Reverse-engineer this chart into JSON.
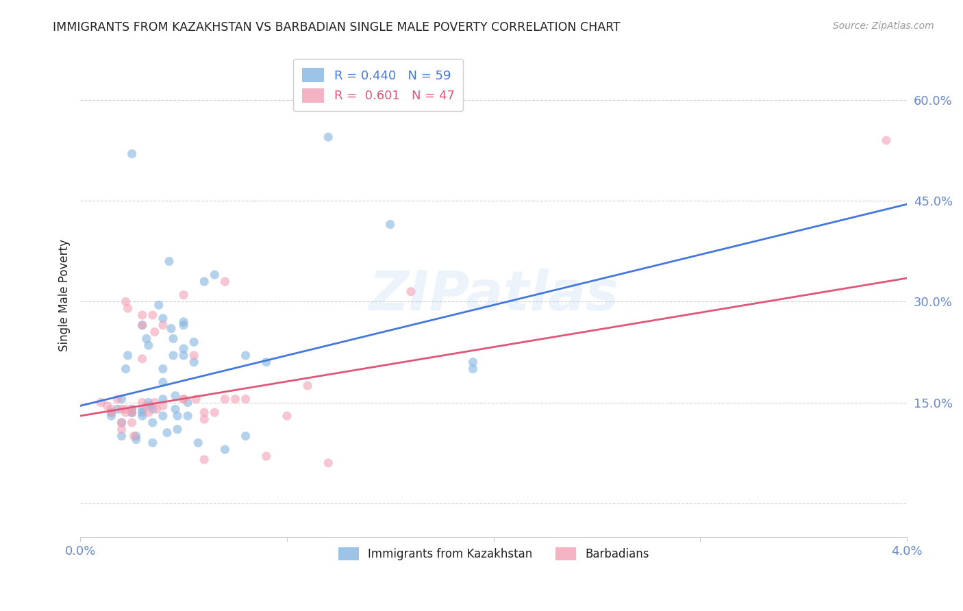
{
  "title": "IMMIGRANTS FROM KAZAKHSTAN VS BARBADIAN SINGLE MALE POVERTY CORRELATION CHART",
  "source": "Source: ZipAtlas.com",
  "ylabel": "Single Male Poverty",
  "y_ticks": [
    0.0,
    0.15,
    0.3,
    0.45,
    0.6
  ],
  "y_tick_labels": [
    "",
    "15.0%",
    "30.0%",
    "45.0%",
    "60.0%"
  ],
  "x_range": [
    0.0,
    0.04
  ],
  "y_range": [
    -0.05,
    0.67
  ],
  "legend_labels_bottom": [
    "Immigrants from Kazakhstan",
    "Barbadians"
  ],
  "blue_color": "#85b5e0",
  "pink_color": "#f0a0b5",
  "blue_line_color": "#4477dd",
  "pink_line_color": "#e05575",
  "watermark": "ZIPatlas",
  "blue_scatter": [
    [
      0.0015,
      0.135
    ],
    [
      0.0018,
      0.14
    ],
    [
      0.002,
      0.155
    ],
    [
      0.002,
      0.12
    ],
    [
      0.002,
      0.1
    ],
    [
      0.0022,
      0.2
    ],
    [
      0.0023,
      0.22
    ],
    [
      0.0025,
      0.14
    ],
    [
      0.0025,
      0.135
    ],
    [
      0.0025,
      0.135
    ],
    [
      0.0027,
      0.1
    ],
    [
      0.0027,
      0.095
    ],
    [
      0.003,
      0.135
    ],
    [
      0.003,
      0.13
    ],
    [
      0.003,
      0.14
    ],
    [
      0.003,
      0.265
    ],
    [
      0.0032,
      0.245
    ],
    [
      0.0033,
      0.235
    ],
    [
      0.0033,
      0.15
    ],
    [
      0.0034,
      0.145
    ],
    [
      0.0035,
      0.12
    ],
    [
      0.0035,
      0.09
    ],
    [
      0.0035,
      0.14
    ],
    [
      0.0038,
      0.295
    ],
    [
      0.004,
      0.275
    ],
    [
      0.004,
      0.2
    ],
    [
      0.004,
      0.18
    ],
    [
      0.004,
      0.155
    ],
    [
      0.004,
      0.13
    ],
    [
      0.0042,
      0.105
    ],
    [
      0.0043,
      0.36
    ],
    [
      0.0044,
      0.26
    ],
    [
      0.0045,
      0.245
    ],
    [
      0.0045,
      0.22
    ],
    [
      0.0046,
      0.16
    ],
    [
      0.0046,
      0.14
    ],
    [
      0.0047,
      0.13
    ],
    [
      0.0047,
      0.11
    ],
    [
      0.005,
      0.27
    ],
    [
      0.005,
      0.265
    ],
    [
      0.005,
      0.23
    ],
    [
      0.005,
      0.22
    ],
    [
      0.0052,
      0.15
    ],
    [
      0.0052,
      0.13
    ],
    [
      0.0055,
      0.24
    ],
    [
      0.0055,
      0.21
    ],
    [
      0.0057,
      0.09
    ],
    [
      0.006,
      0.33
    ],
    [
      0.0065,
      0.34
    ],
    [
      0.007,
      0.08
    ],
    [
      0.008,
      0.22
    ],
    [
      0.008,
      0.1
    ],
    [
      0.009,
      0.21
    ],
    [
      0.0025,
      0.52
    ],
    [
      0.012,
      0.545
    ],
    [
      0.015,
      0.415
    ],
    [
      0.019,
      0.2
    ],
    [
      0.019,
      0.21
    ],
    [
      0.0015,
      0.13
    ]
  ],
  "pink_scatter": [
    [
      0.001,
      0.15
    ],
    [
      0.0013,
      0.145
    ],
    [
      0.0015,
      0.14
    ],
    [
      0.0015,
      0.135
    ],
    [
      0.0018,
      0.155
    ],
    [
      0.002,
      0.14
    ],
    [
      0.002,
      0.12
    ],
    [
      0.002,
      0.11
    ],
    [
      0.0022,
      0.14
    ],
    [
      0.0022,
      0.135
    ],
    [
      0.0022,
      0.3
    ],
    [
      0.0023,
      0.29
    ],
    [
      0.0025,
      0.14
    ],
    [
      0.0025,
      0.135
    ],
    [
      0.0025,
      0.12
    ],
    [
      0.0026,
      0.1
    ],
    [
      0.003,
      0.28
    ],
    [
      0.003,
      0.265
    ],
    [
      0.003,
      0.215
    ],
    [
      0.003,
      0.15
    ],
    [
      0.0032,
      0.145
    ],
    [
      0.0033,
      0.135
    ],
    [
      0.0035,
      0.28
    ],
    [
      0.0036,
      0.255
    ],
    [
      0.0036,
      0.15
    ],
    [
      0.0037,
      0.14
    ],
    [
      0.004,
      0.265
    ],
    [
      0.004,
      0.145
    ],
    [
      0.005,
      0.31
    ],
    [
      0.005,
      0.155
    ],
    [
      0.005,
      0.155
    ],
    [
      0.0055,
      0.22
    ],
    [
      0.0056,
      0.155
    ],
    [
      0.006,
      0.065
    ],
    [
      0.006,
      0.135
    ],
    [
      0.006,
      0.125
    ],
    [
      0.0065,
      0.135
    ],
    [
      0.007,
      0.155
    ],
    [
      0.007,
      0.33
    ],
    [
      0.0075,
      0.155
    ],
    [
      0.008,
      0.155
    ],
    [
      0.009,
      0.07
    ],
    [
      0.01,
      0.13
    ],
    [
      0.011,
      0.175
    ],
    [
      0.012,
      0.06
    ],
    [
      0.016,
      0.315
    ],
    [
      0.039,
      0.54
    ]
  ],
  "blue_line": {
    "x0": 0.0,
    "y0": 0.145,
    "x1": 0.04,
    "y1": 0.445
  },
  "pink_line": {
    "x0": 0.0,
    "y0": 0.13,
    "x1": 0.04,
    "y1": 0.335
  },
  "background_color": "#ffffff",
  "grid_color": "#d0d0d0",
  "title_color": "#222222",
  "tick_label_color": "#6688cc"
}
